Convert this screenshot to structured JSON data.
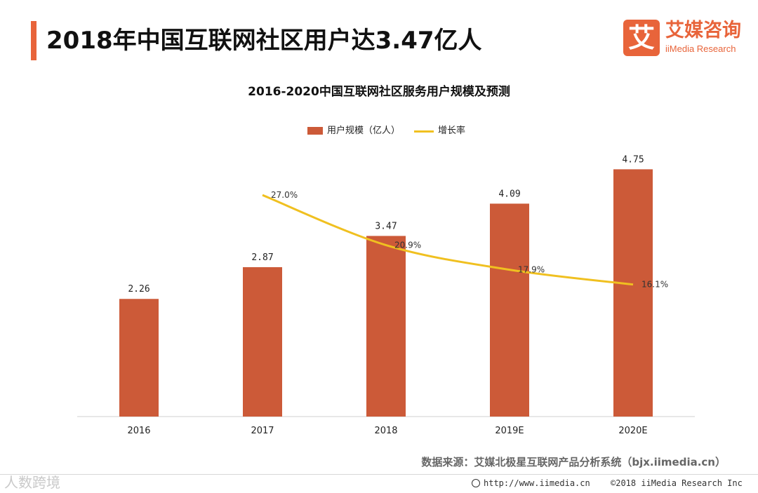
{
  "header": {
    "title": "2018年中国互联网社区用户达3.47亿人",
    "logo_mark": "艾",
    "logo_name": "艾媒咨询",
    "logo_sub": "iiMedia Research"
  },
  "chart_data": {
    "type": "bar",
    "title": "2016-2020中国互联网社区服务用户规模及预测",
    "categories": [
      "2016",
      "2017",
      "2018",
      "2019E",
      "2020E"
    ],
    "series": [
      {
        "name": "用户规模（亿人）",
        "kind": "bar",
        "values": [
          2.26,
          2.87,
          3.47,
          4.09,
          4.75
        ],
        "labels": [
          "2.26",
          "2.87",
          "3.47",
          "4.09",
          "4.75"
        ]
      },
      {
        "name": "增长率",
        "kind": "line",
        "values": [
          null,
          27.0,
          20.9,
          17.9,
          16.1
        ],
        "labels": [
          "",
          "27.0%",
          "20.9%",
          "17.9%",
          "16.1%"
        ]
      }
    ],
    "bar_ylim": [
      0,
      5.2
    ],
    "line_ylim": [
      0,
      33
    ],
    "legend_position": "top-center",
    "grid": false
  },
  "colors": {
    "bar": "#cc5a38",
    "line": "#f0c020",
    "accent": "#e8643a"
  },
  "footer": {
    "source": "数据来源：艾媒北极星互联网产品分析系统（bjx.iimedia.cn）",
    "watermark": "人数跨境",
    "url": "http://www.iimedia.cn",
    "copyright": "©2018  iiMedia Research  Inc"
  }
}
